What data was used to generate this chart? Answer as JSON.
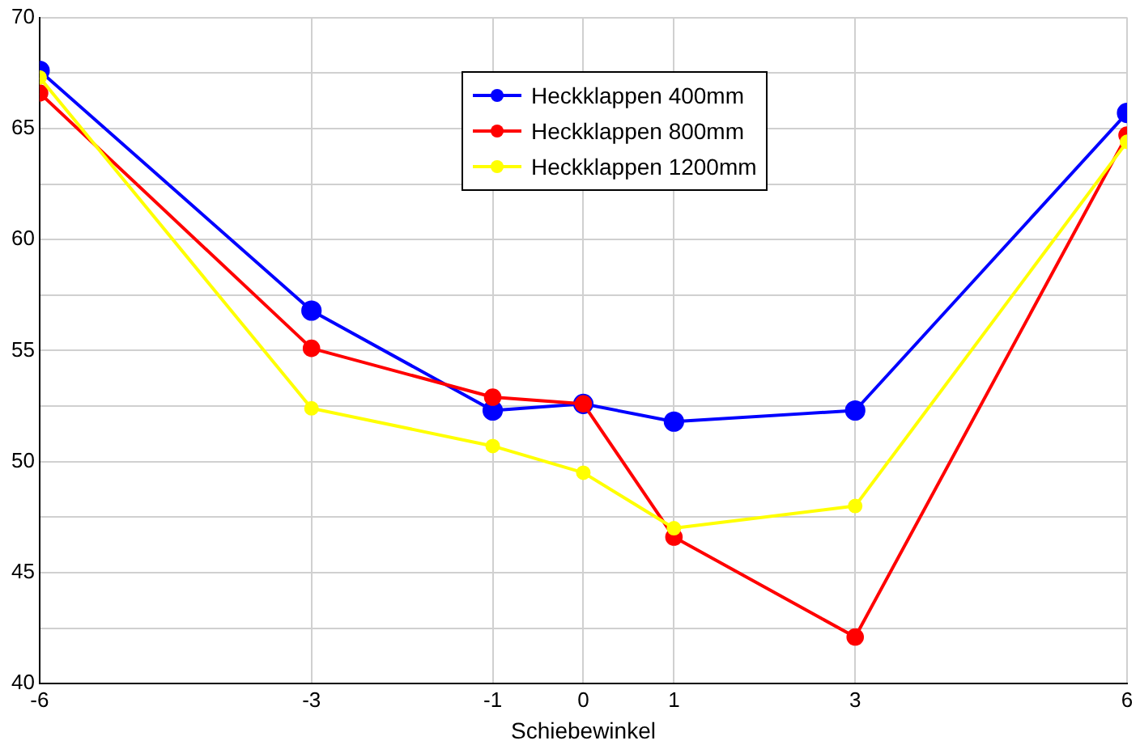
{
  "chart_data": {
    "type": "line",
    "xlabel": "Schiebewinkel",
    "x": [
      -6,
      -3,
      -1,
      0,
      1,
      3,
      6
    ],
    "series": [
      {
        "name": "Heckklappen 400mm",
        "color": "#0000ff",
        "values": [
          67.6,
          56.8,
          52.3,
          52.6,
          51.8,
          52.3,
          65.7
        ]
      },
      {
        "name": "Heckklappen 800mm",
        "color": "#ff0000",
        "values": [
          66.6,
          55.1,
          52.9,
          52.6,
          46.6,
          42.1,
          64.7
        ]
      },
      {
        "name": "Heckklappen 1200mm",
        "color": "#ffff00",
        "values": [
          67.3,
          52.4,
          50.7,
          49.5,
          47.0,
          48.0,
          64.4
        ]
      }
    ],
    "xlim": [
      -6,
      6
    ],
    "xticks": [
      -6,
      -3,
      -1,
      0,
      1,
      3,
      6
    ],
    "ylim": [
      40,
      70
    ],
    "yticks": [
      40,
      {
        "value": 42.5,
        "label": null
      },
      45,
      {
        "value": 47.5,
        "label": null
      },
      50,
      {
        "value": 52.5,
        "label": null
      },
      55,
      {
        "value": 57.5,
        "label": null
      },
      60,
      {
        "value": 62.5,
        "label": null
      },
      65,
      {
        "value": 67.5,
        "label": null
      },
      70
    ],
    "grid": true,
    "legend": "top center",
    "marker": "circle",
    "line_style": "solid"
  }
}
